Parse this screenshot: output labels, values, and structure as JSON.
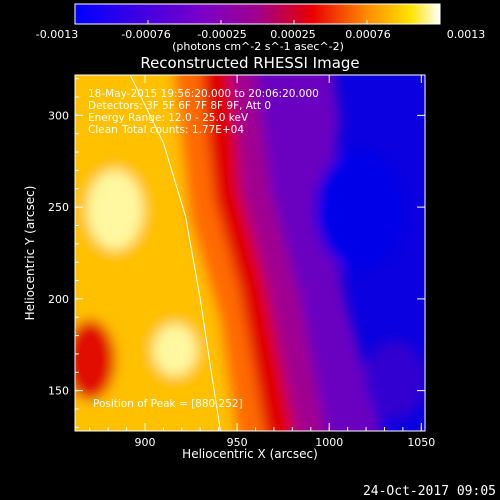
{
  "chart_data": {
    "type": "heatmap",
    "title": "Reconstructed RHESSI Image",
    "xlabel": "Heliocentric X (arcsec)",
    "ylabel": "Heliocentric Y (arcsec)",
    "xlim": [
      862,
      1052
    ],
    "ylim": [
      128,
      322
    ],
    "x_ticks": [
      900,
      950,
      1000,
      1050
    ],
    "y_ticks": [
      150,
      200,
      250,
      300
    ],
    "colorbar": {
      "min": -0.0013,
      "max": 0.0013,
      "tick_labels": [
        "-0.0013",
        "-0.00076",
        "-0.00025",
        "0.00025",
        "0.00076",
        "0.0013"
      ],
      "unit_label": "(photons cm^-2 s^-1 asec^-2)",
      "stops": [
        "#0000ff",
        "#7a00c8",
        "#a0008c",
        "#e80000",
        "#ff8c00",
        "#ffe400",
        "#ffffff"
      ]
    },
    "annotations": {
      "time_range": "18-May-2015 19:56:20.000 to 20:06:20.000",
      "detectors": "Detectors: 3F 5F 6F 7F 8F 9F, Att 0",
      "energy_range": "Energy Range: 12.0 - 25.0 keV",
      "method": "Clean",
      "total_counts": "Total counts: 1.77E+04",
      "position": "Position of Peak = [880,252]"
    },
    "limb_curve": [
      [
        892,
        322
      ],
      [
        910,
        285
      ],
      [
        922,
        245
      ],
      [
        930,
        200
      ],
      [
        936,
        160
      ],
      [
        941,
        128
      ]
    ]
  },
  "footer": {
    "timestamp": "24-Oct-2017 09:05"
  }
}
